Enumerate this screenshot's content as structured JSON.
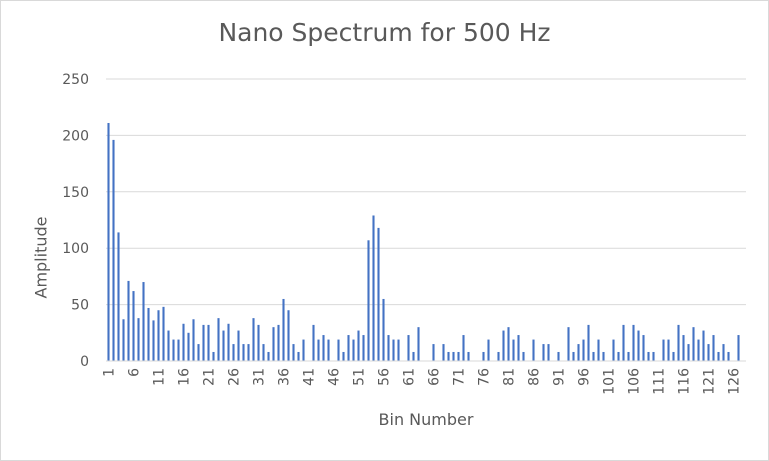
{
  "chart_data": {
    "type": "bar",
    "title": "Nano Spectrum for 500 Hz",
    "xlabel": "Bin Number",
    "ylabel": "Amplitude",
    "ylim": [
      0,
      250
    ],
    "yticks": [
      "0",
      "50",
      "100",
      "150",
      "200",
      "250"
    ],
    "grid": true,
    "legend": "none",
    "bar_color": "#4472c4",
    "x": [
      1,
      2,
      3,
      4,
      5,
      6,
      7,
      8,
      9,
      10,
      11,
      12,
      13,
      14,
      15,
      16,
      17,
      18,
      19,
      20,
      21,
      22,
      23,
      24,
      25,
      26,
      27,
      28,
      29,
      30,
      31,
      32,
      33,
      34,
      35,
      36,
      37,
      38,
      39,
      40,
      41,
      42,
      43,
      44,
      45,
      46,
      47,
      48,
      49,
      50,
      51,
      52,
      53,
      54,
      55,
      56,
      57,
      58,
      59,
      60,
      61,
      62,
      63,
      64,
      65,
      66,
      67,
      68,
      69,
      70,
      71,
      72,
      73,
      74,
      75,
      76,
      77,
      78,
      79,
      80,
      81,
      82,
      83,
      84,
      85,
      86,
      87,
      88,
      89,
      90,
      91,
      92,
      93,
      94,
      95,
      96,
      97,
      98,
      99,
      100,
      101,
      102,
      103,
      104,
      105,
      106,
      107,
      108,
      109,
      110,
      111,
      112,
      113,
      114,
      115,
      116,
      117,
      118,
      119,
      120,
      121,
      122,
      123,
      124,
      125,
      126,
      127,
      128
    ],
    "values": [
      211,
      196,
      114,
      37,
      71,
      62,
      38,
      70,
      47,
      36,
      45,
      48,
      27,
      19,
      19,
      33,
      25,
      37,
      15,
      32,
      32,
      8,
      38,
      27,
      33,
      15,
      27,
      15,
      15,
      38,
      32,
      15,
      8,
      30,
      32,
      55,
      45,
      15,
      8,
      19,
      0,
      32,
      19,
      23,
      19,
      0,
      19,
      8,
      23,
      19,
      27,
      23,
      107,
      129,
      118,
      55,
      23,
      19,
      19,
      0,
      23,
      8,
      30,
      0,
      0,
      15,
      0,
      15,
      8,
      8,
      8,
      23,
      8,
      0,
      0,
      8,
      19,
      0,
      8,
      27,
      30,
      19,
      23,
      8,
      0,
      19,
      0,
      15,
      15,
      0,
      8,
      0,
      30,
      8,
      15,
      19,
      32,
      8,
      19,
      8,
      0,
      19,
      8,
      32,
      8,
      32,
      27,
      23,
      8,
      8,
      0,
      19,
      19,
      8,
      32,
      23,
      15,
      30,
      19,
      27,
      15,
      23,
      8,
      15,
      8,
      0,
      23,
      0
    ],
    "xtick_labels": [
      "1",
      "6",
      "11",
      "16",
      "21",
      "26",
      "31",
      "36",
      "41",
      "46",
      "51",
      "56",
      "61",
      "66",
      "71",
      "76",
      "81",
      "86",
      "91",
      "96",
      "101",
      "106",
      "111",
      "116",
      "121",
      "126"
    ]
  }
}
